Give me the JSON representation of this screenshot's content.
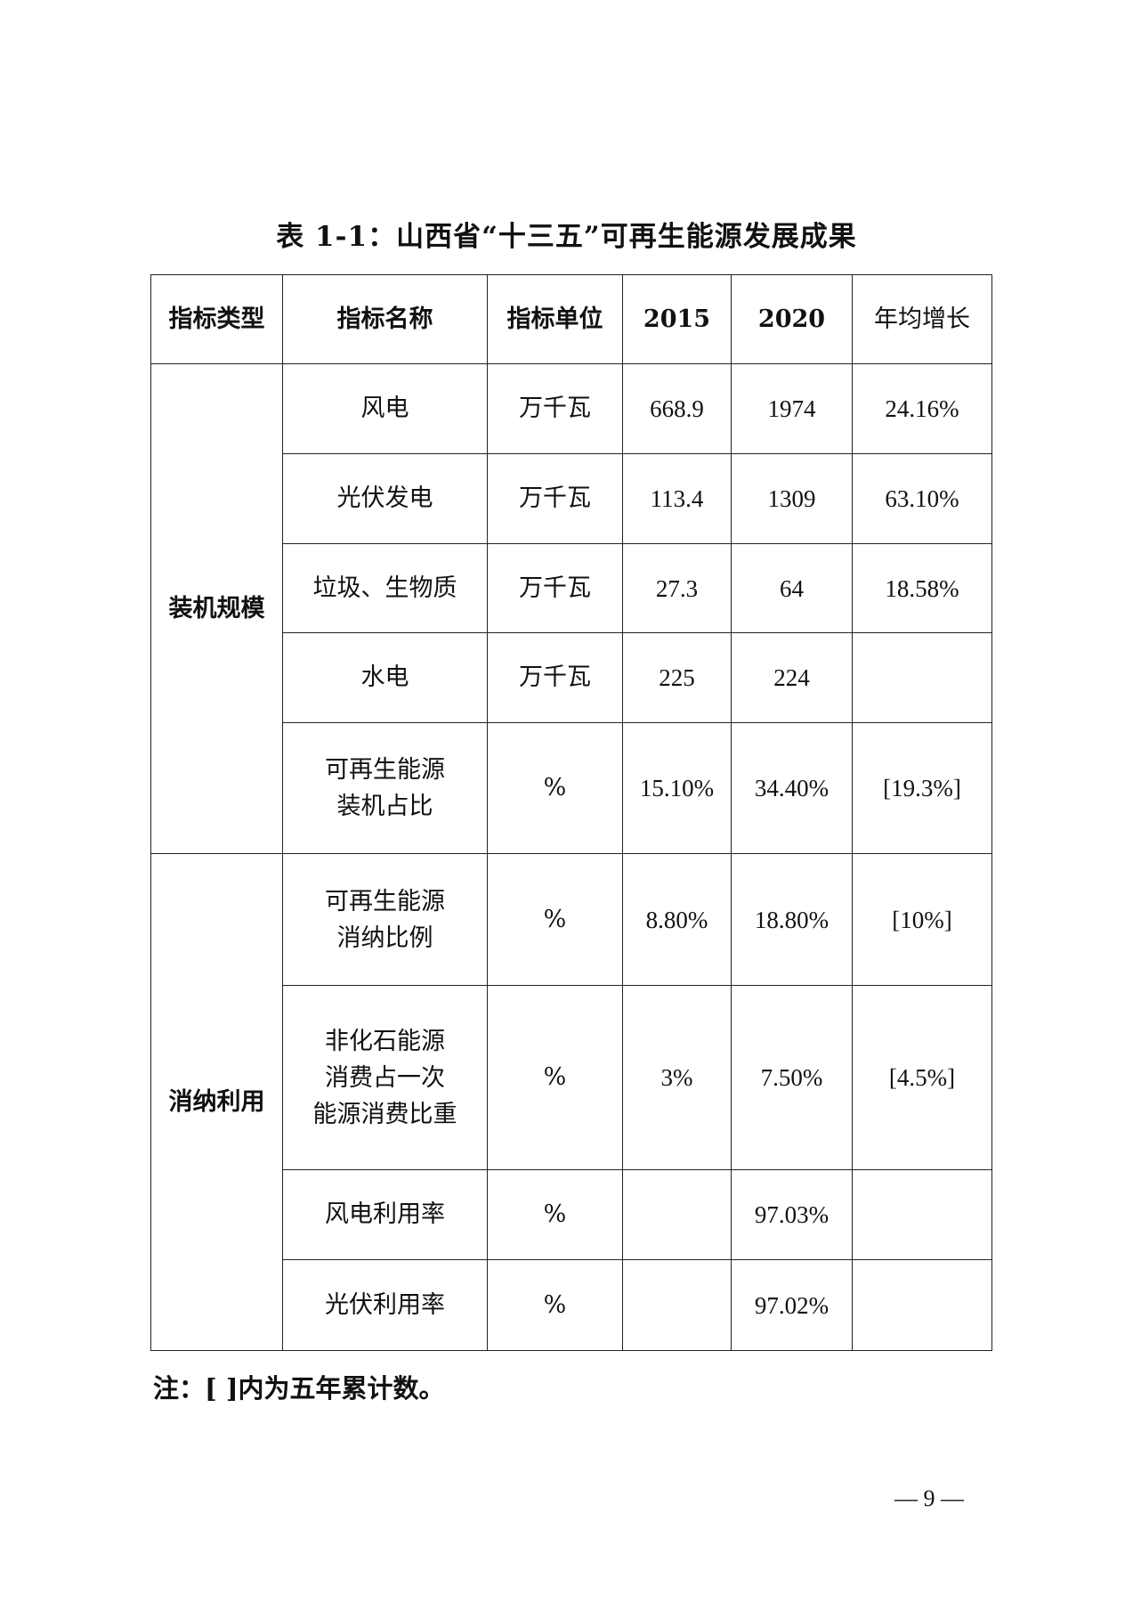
{
  "title": "表 1-1：山西省“十三五”可再生能源发展成果",
  "headers": [
    "指标类型",
    "指标名称",
    "指标单位",
    "2015",
    "2020",
    "年均增长"
  ],
  "groups": [
    {
      "category": "装机规模",
      "rows": [
        {
          "name": "风电",
          "unit": "万千瓦",
          "y2015": "668.9",
          "y2020": "1974",
          "growth": "24.16%"
        },
        {
          "name": "光伏发电",
          "unit": "万千瓦",
          "y2015": "113.4",
          "y2020": "1309",
          "growth": "63.10%"
        },
        {
          "name": "垃圾、生物质",
          "unit": "万千瓦",
          "y2015": "27.3",
          "y2020": "64",
          "growth": "18.58%"
        },
        {
          "name": "水电",
          "unit": "万千瓦",
          "y2015": "225",
          "y2020": "224",
          "growth": ""
        },
        {
          "name": "可再生能源装机占比",
          "unit": "%",
          "y2015": "15.10%",
          "y2020": "34.40%",
          "growth": "[19.3%]"
        }
      ]
    },
    {
      "category": "消纳利用",
      "rows": [
        {
          "name": "可再生能源消纳比例",
          "unit": "%",
          "y2015": "8.80%",
          "y2020": "18.80%",
          "growth": "[10%]"
        },
        {
          "name": "非化石能源消费占一次能源消费比重",
          "unit": "%",
          "y2015": "3%",
          "y2020": "7.50%",
          "growth": "[4.5%]"
        },
        {
          "name": "风电利用率",
          "unit": "%",
          "y2015": "",
          "y2020": "97.03%",
          "growth": ""
        },
        {
          "name": "光伏利用率",
          "unit": "%",
          "y2015": "",
          "y2020": "97.02%",
          "growth": ""
        }
      ]
    }
  ],
  "note": "注：[ ]内为五年累计数。",
  "page_number": "— 9 —"
}
